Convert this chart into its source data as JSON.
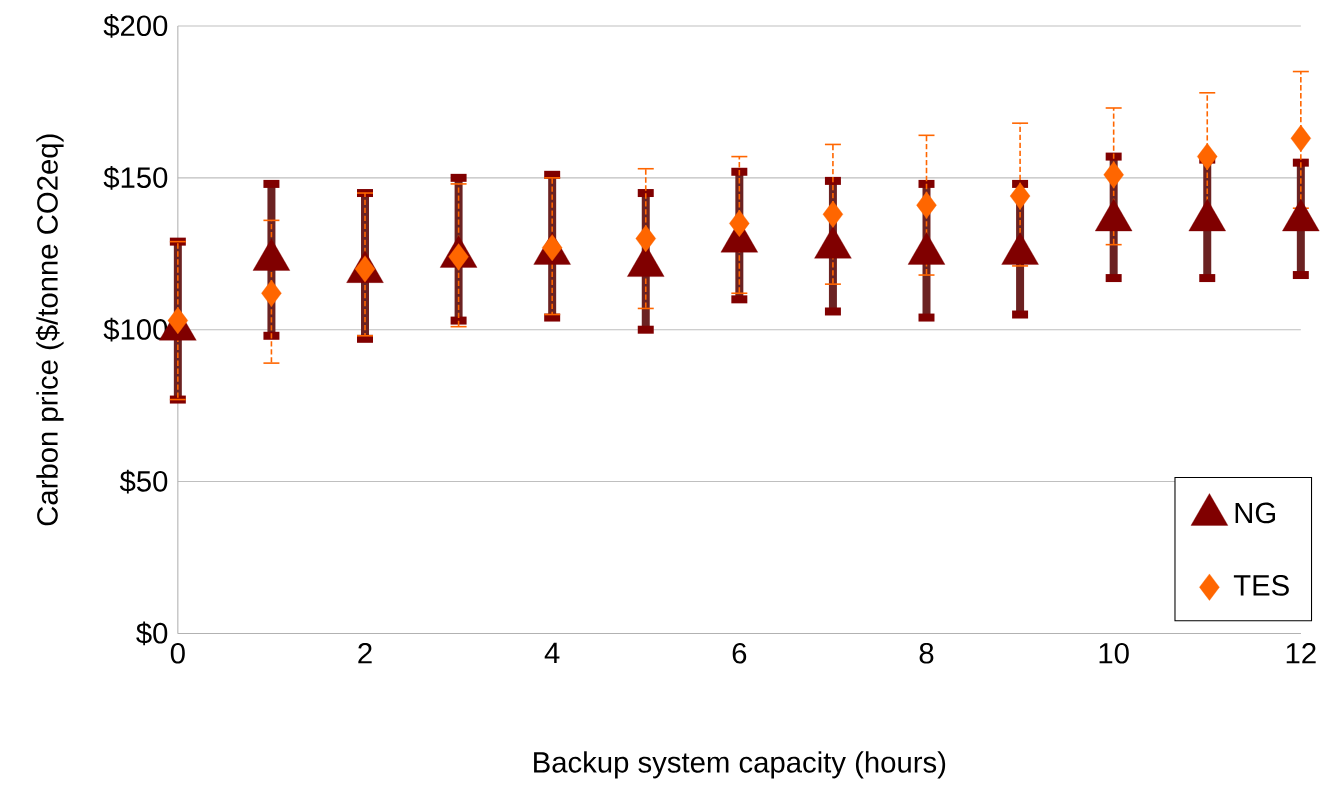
{
  "chart_data": {
    "type": "scatter",
    "xlabel": "Backup system capacity (hours)",
    "ylabel": "Carbon price ($/tonne CO2eq)",
    "x": [
      0,
      1,
      2,
      3,
      4,
      5,
      6,
      7,
      8,
      9,
      10,
      11,
      12
    ],
    "xlim": [
      0,
      12
    ],
    "xticks": [
      0,
      2,
      4,
      6,
      8,
      10,
      12
    ],
    "ylim": [
      0,
      200
    ],
    "yticks": [
      {
        "value": 0,
        "label": "$0"
      },
      {
        "value": 50,
        "label": "$50"
      },
      {
        "value": 100,
        "label": "$100"
      },
      {
        "value": 150,
        "label": "$150"
      },
      {
        "value": 200,
        "label": "$200"
      }
    ],
    "grid": "y",
    "legend": "bottom right",
    "series": [
      {
        "name": "NG",
        "color": "#800000",
        "marker": "triangle",
        "values": [
          100,
          123,
          119,
          124,
          125,
          121,
          129,
          127,
          125,
          125,
          136,
          136,
          136
        ],
        "errors": [
          [
            77,
            129
          ],
          [
            98,
            148
          ],
          [
            97,
            145
          ],
          [
            103,
            150
          ],
          [
            104,
            151
          ],
          [
            100,
            145
          ],
          [
            110,
            152
          ],
          [
            106,
            149
          ],
          [
            104,
            148
          ],
          [
            105,
            148
          ],
          [
            117,
            157
          ],
          [
            117,
            156
          ],
          [
            118,
            155
          ]
        ]
      },
      {
        "name": "TES",
        "color": "#ff6600",
        "marker": "diamond",
        "values": [
          103,
          112,
          120,
          124,
          127,
          130,
          135,
          138,
          141,
          144,
          151,
          157,
          163
        ],
        "errors": [
          [
            77,
            129
          ],
          [
            89,
            136
          ],
          [
            98,
            145
          ],
          [
            101,
            148
          ],
          [
            105,
            150
          ],
          [
            107,
            153
          ],
          [
            112,
            157
          ],
          [
            115,
            161
          ],
          [
            118,
            164
          ],
          [
            121,
            168
          ],
          [
            128,
            173
          ],
          [
            133,
            178
          ],
          [
            140,
            185
          ]
        ]
      }
    ]
  }
}
